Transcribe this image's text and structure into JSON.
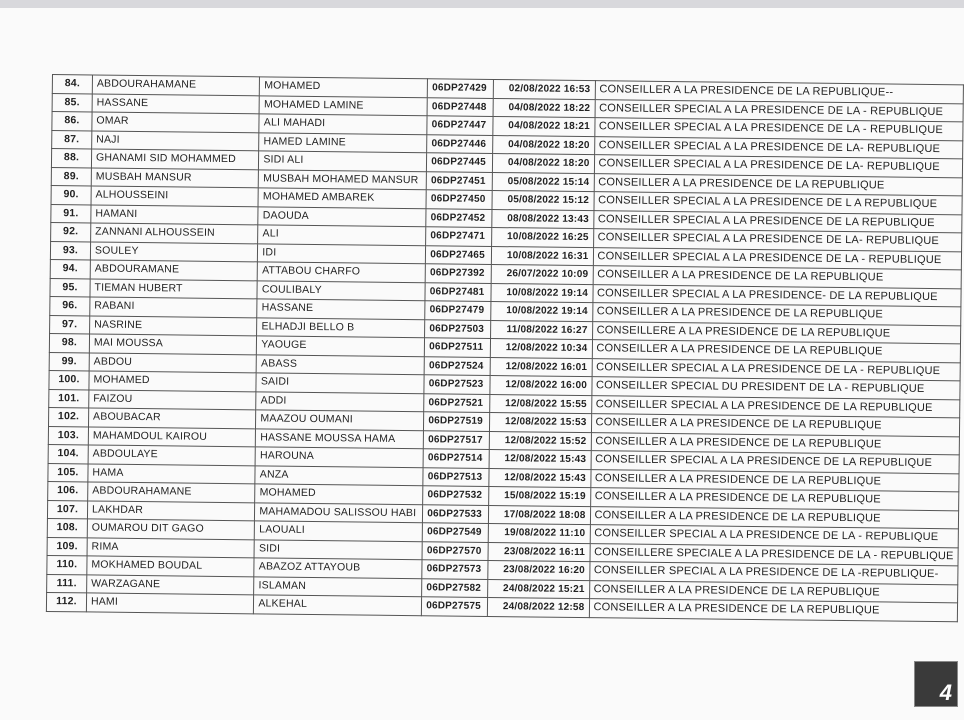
{
  "table": {
    "rows": [
      {
        "num": "84.",
        "last": "ABDOURAHAMANE",
        "first": "MOHAMED",
        "id": "06DP27429",
        "date": "02/08/2022 16:53",
        "title": "CONSEILLER A LA PRESIDENCE DE LA REPUBLIQUE--"
      },
      {
        "num": "85.",
        "last": "HASSANE",
        "first": "MOHAMED LAMINE",
        "id": "06DP27448",
        "date": "04/08/2022 18:22",
        "title": "CONSEILLER SPECIAL A LA PRESIDENCE DE LA - REPUBLIQUE"
      },
      {
        "num": "86.",
        "last": "OMAR",
        "first": "ALI MAHADI",
        "id": "06DP27447",
        "date": "04/08/2022 18:21",
        "title": "CONSEILLER SPECIAL A LA PRESIDENCE DE LA - REPUBLIQUE"
      },
      {
        "num": "87.",
        "last": "NAJI",
        "first": "HAMED LAMINE",
        "id": "06DP27446",
        "date": "04/08/2022 18:20",
        "title": "CONSEILLER SPECIAL A LA PRESIDENCE DE LA- REPUBLIQUE"
      },
      {
        "num": "88.",
        "last": "GHANAMI SID MOHAMMED",
        "first": "SIDI ALI",
        "id": "06DP27445",
        "date": "04/08/2022 18:20",
        "title": "CONSEILLER SPECIAL A LA PRESIDENCE DE LA- REPUBLIQUE"
      },
      {
        "num": "89.",
        "last": "MUSBAH MANSUR",
        "first": "MUSBAH MOHAMED MANSUR",
        "id": "06DP27451",
        "date": "05/08/2022 15:14",
        "title": "CONSEILLER A LA PRESIDENCE DE LA REPUBLIQUE"
      },
      {
        "num": "90.",
        "last": "ALHOUSSEINI",
        "first": "MOHAMED AMBAREK",
        "id": "06DP27450",
        "date": "05/08/2022 15:12",
        "title": "CONSEILLER SPECIAL A LA PRESIDENCE DE L A REPUBLIQUE"
      },
      {
        "num": "91.",
        "last": "HAMANI",
        "first": "DAOUDA",
        "id": "06DP27452",
        "date": "08/08/2022 13:43",
        "title": "CONSEILLER SPECIAL A LA PRESIDENCE DE LA REPUBLIQUE"
      },
      {
        "num": "92.",
        "last": "ZANNANI ALHOUSSEIN",
        "first": "ALI",
        "id": "06DP27471",
        "date": "10/08/2022 16:25",
        "title": "CONSEILLER SPECIAL A LA PRESIDENCE DE LA- REPUBLIQUE"
      },
      {
        "num": "93.",
        "last": "SOULEY",
        "first": "IDI",
        "id": "06DP27465",
        "date": "10/08/2022 16:31",
        "title": "CONSEILLER SPECIAL A LA PRESIDENCE DE LA - REPUBLIQUE"
      },
      {
        "num": "94.",
        "last": "ABDOURAMANE",
        "first": "ATTABOU CHARFO",
        "id": "06DP27392",
        "date": "26/07/2022 10:09",
        "title": "CONSEILLER A LA PRESIDENCE DE LA REPUBLIQUE"
      },
      {
        "num": "95.",
        "last": "TIEMAN HUBERT",
        "first": "COULIBALY",
        "id": "06DP27481",
        "date": "10/08/2022 19:14",
        "title": "CONSEILLER SPECIAL A LA PRESIDENCE- DE LA REPUBLIQUE"
      },
      {
        "num": "96.",
        "last": "RABANI",
        "first": "HASSANE",
        "id": "06DP27479",
        "date": "10/08/2022 19:14",
        "title": "CONSEILLER A LA PRESIDENCE DE LA REPUBLIQUE"
      },
      {
        "num": "97.",
        "last": "NASRINE",
        "first": "ELHADJI BELLO B",
        "id": "06DP27503",
        "date": "11/08/2022 16:27",
        "title": "CONSEILLERE A LA PRESIDENCE DE LA REPUBLIQUE"
      },
      {
        "num": "98.",
        "last": "MAI MOUSSA",
        "first": "YAOUGE",
        "id": "06DP27511",
        "date": "12/08/2022 10:34",
        "title": "CONSEILLER A LA PRESIDENCE DE LA REPUBLIQUE"
      },
      {
        "num": "99.",
        "last": "ABDOU",
        "first": "ABASS",
        "id": "06DP27524",
        "date": "12/08/2022 16:01",
        "title": "CONSEILLER SPECIAL A LA PRESIDENCE DE LA - REPUBLIQUE"
      },
      {
        "num": "100.",
        "last": "MOHAMED",
        "first": "SAIDI",
        "id": "06DP27523",
        "date": "12/08/2022 16:00",
        "title": "CONSEILLER SPECIAL DU PRESIDENT DE LA - REPUBLIQUE"
      },
      {
        "num": "101.",
        "last": "FAIZOU",
        "first": "ADDI",
        "id": "06DP27521",
        "date": "12/08/2022 15:55",
        "title": "CONSEILLER SPECIAL A LA PRESIDENCE DE LA REPUBLIQUE"
      },
      {
        "num": "102.",
        "last": "ABOUBACAR",
        "first": "MAAZOU OUMANI",
        "id": "06DP27519",
        "date": "12/08/2022 15:53",
        "title": "CONSEILLER A LA PRESIDENCE DE LA REPUBLIQUE"
      },
      {
        "num": "103.",
        "last": "MAHAMDOUL KAIROU",
        "first": "HASSANE MOUSSA HAMA",
        "id": "06DP27517",
        "date": "12/08/2022 15:52",
        "title": "CONSEILLER A LA PRESIDENCE DE LA REPUBLIQUE"
      },
      {
        "num": "104.",
        "last": "ABDOULAYE",
        "first": "HAROUNA",
        "id": "06DP27514",
        "date": "12/08/2022 15:43",
        "title": "CONSEILLER SPECIAL A LA PRESIDENCE DE LA REPUBLIQUE"
      },
      {
        "num": "105.",
        "last": "HAMA",
        "first": "ANZA",
        "id": "06DP27513",
        "date": "12/08/2022 15:43",
        "title": "CONSEILLER A LA PRESIDENCE DE LA REPUBLIQUE"
      },
      {
        "num": "106.",
        "last": "ABDOURAHAMANE",
        "first": "MOHAMED",
        "id": "06DP27532",
        "date": "15/08/2022 15:19",
        "title": "CONSEILLER A LA PRESIDENCE DE LA REPUBLIQUE"
      },
      {
        "num": "107.",
        "last": "LAKHDAR",
        "first": "MAHAMADOU SALISSOU HABI",
        "id": "06DP27533",
        "date": "17/08/2022 18:08",
        "title": "CONSEILLER A LA PRESIDENCE DE LA REPUBLIQUE"
      },
      {
        "num": "108.",
        "last": "OUMAROU DIT GAGO",
        "first": "LAOUALI",
        "id": "06DP27549",
        "date": "19/08/2022 11:10",
        "title": "CONSEILLER SPECIAL A LA PRESIDENCE DE LA - REPUBLIQUE"
      },
      {
        "num": "109.",
        "last": "RIMA",
        "first": "SIDI",
        "id": "06DP27570",
        "date": "23/08/2022 16:11",
        "title": "CONSEILLERE SPECIALE A LA PRESIDENCE DE LA - REPUBLIQUE"
      },
      {
        "num": "110.",
        "last": "MOKHAMED BOUDAL",
        "first": "ABAZOZ ATTAYOUB",
        "id": "06DP27573",
        "date": "23/08/2022 16:20",
        "title": "CONSEILLER SPECIAL A LA PRESIDENCE DE LA -REPUBLIQUE-"
      },
      {
        "num": "111.",
        "last": "WARZAGANE",
        "first": "ISLAMAN",
        "id": "06DP27582",
        "date": "24/08/2022 15:21",
        "title": "CONSEILLER A LA PRESIDENCE DE LA REPUBLIQUE"
      },
      {
        "num": "112.",
        "last": "HAMI",
        "first": "ALKEHAL",
        "id": "06DP27575",
        "date": "24/08/2022 12:58",
        "title": "CONSEILLER A LA PRESIDENCE DE LA REPUBLIQUE"
      }
    ]
  },
  "page_number": "4"
}
